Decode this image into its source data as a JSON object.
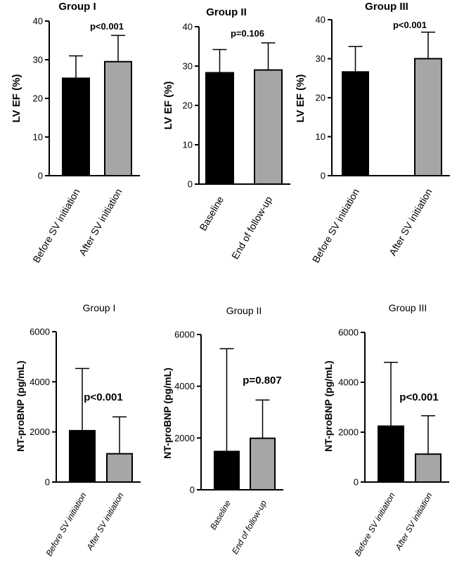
{
  "chart_data": [
    {
      "id": "ef-group-1",
      "type": "bar",
      "title": "Group I",
      "ylabel": "LV EF (%)",
      "xlabel": "",
      "categories": [
        "Before SV initiation",
        "After SV initiation"
      ],
      "values": [
        25.2,
        29.5
      ],
      "errors": [
        5.8,
        6.8
      ],
      "colors": [
        "#000000",
        "#a6a6a6"
      ],
      "ylim": [
        0,
        40
      ],
      "yticks": [
        0,
        10,
        20,
        30,
        40
      ],
      "annotation": "p<0.001",
      "grid": false
    },
    {
      "id": "ef-group-2",
      "type": "bar",
      "title": "Group II",
      "ylabel": "LV EF (%)",
      "xlabel": "",
      "categories": [
        "Baseline",
        "End of follow-up"
      ],
      "values": [
        28.3,
        29.0
      ],
      "errors": [
        5.9,
        6.9
      ],
      "colors": [
        "#000000",
        "#a6a6a6"
      ],
      "ylim": [
        0,
        40
      ],
      "yticks": [
        0,
        10,
        20,
        30,
        40
      ],
      "annotation": "p=0.106",
      "grid": false
    },
    {
      "id": "ef-group-3",
      "type": "bar",
      "title": "Group III",
      "ylabel": "LV EF (%)",
      "xlabel": "",
      "categories": [
        "Before SV initiation",
        "After SV initiation"
      ],
      "values": [
        26.6,
        30.0
      ],
      "errors": [
        6.5,
        6.8
      ],
      "colors": [
        "#000000",
        "#a6a6a6"
      ],
      "ylim": [
        0,
        40
      ],
      "yticks": [
        0,
        10,
        20,
        30,
        40
      ],
      "annotation": "p<0.001",
      "grid": false
    },
    {
      "id": "bnp-group-1",
      "type": "bar",
      "title": "Group I",
      "ylabel": "NT-proBNP (pg/mL)",
      "xlabel": "",
      "categories": [
        "Before SV initiation",
        "After SV initiation"
      ],
      "values": [
        2050,
        1130
      ],
      "errors": [
        2480,
        1470
      ],
      "colors": [
        "#000000",
        "#a6a6a6"
      ],
      "ylim": [
        0,
        6000
      ],
      "yticks": [
        0,
        2000,
        4000,
        6000
      ],
      "annotation": "p<0.001",
      "grid": false
    },
    {
      "id": "bnp-group-2",
      "type": "bar",
      "title": "Group II",
      "ylabel": "NT-proBNP (pg/mL)",
      "xlabel": "",
      "categories": [
        "Baseline",
        "End of follow-up"
      ],
      "values": [
        1480,
        1990
      ],
      "errors": [
        3970,
        1480
      ],
      "colors": [
        "#000000",
        "#a6a6a6"
      ],
      "ylim": [
        0,
        6000
      ],
      "yticks": [
        0,
        2000,
        4000,
        6000
      ],
      "annotation": "p=0.807",
      "grid": false
    },
    {
      "id": "bnp-group-3",
      "type": "bar",
      "title": "Group III",
      "ylabel": "NT-proBNP (pg/mL)",
      "xlabel": "",
      "categories": [
        "Before SV initiation",
        "After SV initiation"
      ],
      "values": [
        2240,
        1120
      ],
      "errors": [
        2560,
        1540
      ],
      "colors": [
        "#000000",
        "#a6a6a6"
      ],
      "ylim": [
        0,
        6000
      ],
      "yticks": [
        0,
        2000,
        4000,
        6000
      ],
      "annotation": "p<0.001",
      "grid": false
    }
  ]
}
